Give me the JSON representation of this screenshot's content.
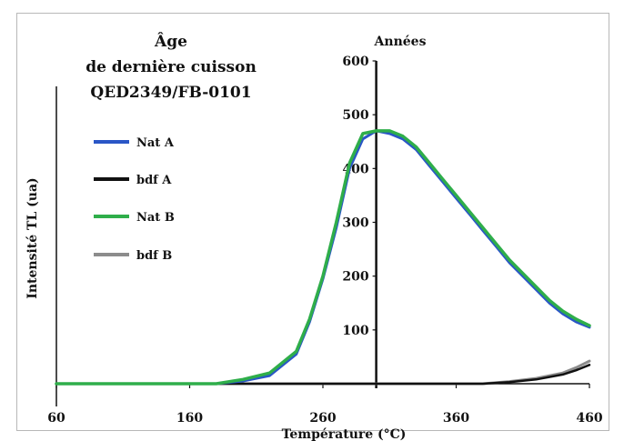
{
  "chart_data": {
    "type": "line",
    "title_lines": [
      "Âge",
      "de dernière cuisson",
      "QED2349/FB-0101"
    ],
    "xlabel": "Température (°C)",
    "ylabel": "Intensité TL (ua)",
    "annotation": "Années",
    "xlim": [
      60,
      460
    ],
    "ylim": [
      0,
      600
    ],
    "x_ticks": [
      60,
      160,
      260,
      360,
      460
    ],
    "y_ticks": [
      100,
      200,
      300,
      400,
      500,
      600
    ],
    "y_axis_at_x": 300,
    "series": [
      {
        "name": "Nat A",
        "color": "#2a56c6",
        "x": [
          60,
          180,
          200,
          220,
          240,
          250,
          260,
          270,
          280,
          290,
          300,
          310,
          320,
          330,
          340,
          350,
          360,
          370,
          380,
          390,
          400,
          410,
          420,
          430,
          440,
          450,
          460
        ],
        "y": [
          0,
          0,
          5,
          15,
          55,
          115,
          195,
          290,
          400,
          455,
          470,
          465,
          455,
          435,
          405,
          375,
          345,
          315,
          285,
          255,
          225,
          200,
          175,
          150,
          130,
          115,
          105
        ]
      },
      {
        "name": "bdf A",
        "color": "#111111",
        "x": [
          60,
          380,
          400,
          420,
          440,
          450,
          460
        ],
        "y": [
          0,
          0,
          3,
          8,
          17,
          25,
          35
        ]
      },
      {
        "name": "Nat B",
        "color": "#2fae4a",
        "x": [
          60,
          180,
          200,
          220,
          240,
          250,
          260,
          270,
          280,
          290,
          300,
          310,
          320,
          330,
          340,
          350,
          360,
          370,
          380,
          390,
          400,
          410,
          420,
          430,
          440,
          450,
          460
        ],
        "y": [
          0,
          0,
          8,
          20,
          60,
          120,
          200,
          300,
          410,
          465,
          470,
          470,
          460,
          440,
          410,
          380,
          350,
          320,
          290,
          260,
          230,
          205,
          180,
          155,
          135,
          120,
          108
        ]
      },
      {
        "name": "bdf B",
        "color": "#8c8c8c",
        "x": [
          60,
          380,
          400,
          420,
          440,
          450,
          460
        ],
        "y": [
          0,
          0,
          4,
          10,
          20,
          30,
          42
        ]
      }
    ]
  }
}
